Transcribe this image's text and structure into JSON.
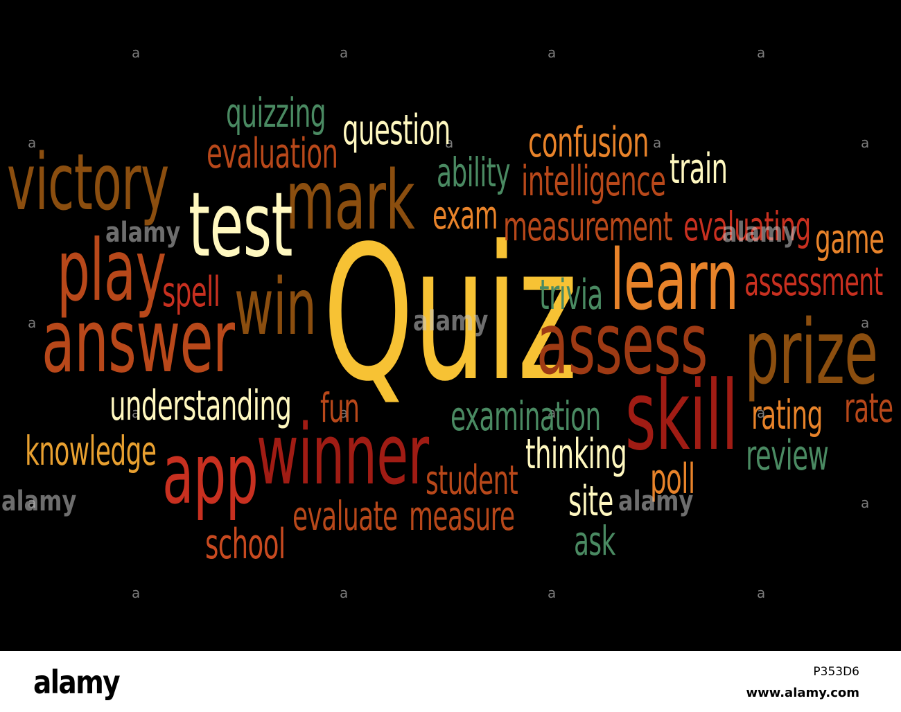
{
  "colors": {
    "background": "#000000",
    "yellow": "#f7c234",
    "cream": "#fff8c0",
    "brown": "#8b4e0f",
    "rust": "#b8481a",
    "orange": "#e8832a",
    "red": "#a01c14",
    "teal": "#4a8a62"
  },
  "words": [
    {
      "text": "Quiz",
      "color": "#f7c234"
    },
    {
      "text": "victory",
      "color": "#8b4e0f"
    },
    {
      "text": "mark",
      "color": "#8b4e0f"
    },
    {
      "text": "test",
      "color": "#fff8c0"
    },
    {
      "text": "play",
      "color": "#b8481a"
    },
    {
      "text": "win",
      "color": "#8b4e0f"
    },
    {
      "text": "answer",
      "color": "#b8481a"
    },
    {
      "text": "learn",
      "color": "#e8832a"
    },
    {
      "text": "assess",
      "color": "#9e3a14"
    },
    {
      "text": "prize",
      "color": "#8b4e0f"
    },
    {
      "text": "skill",
      "color": "#a01c14"
    },
    {
      "text": "winner",
      "color": "#a01c14"
    },
    {
      "text": "app",
      "color": "#c83020"
    },
    {
      "text": "quizzing",
      "color": "#4a8a62"
    },
    {
      "text": "question",
      "color": "#fff8c0"
    },
    {
      "text": "evaluation",
      "color": "#b8481a"
    },
    {
      "text": "confusion",
      "color": "#e8832a"
    },
    {
      "text": "ability",
      "color": "#4a8a62"
    },
    {
      "text": "intelligence",
      "color": "#b8481a"
    },
    {
      "text": "train",
      "color": "#fff8c0"
    },
    {
      "text": "exam",
      "color": "#e8832a"
    },
    {
      "text": "measurement",
      "color": "#b8481a"
    },
    {
      "text": "evaluating",
      "color": "#c83020"
    },
    {
      "text": "game",
      "color": "#e8832a"
    },
    {
      "text": "spell",
      "color": "#c83020"
    },
    {
      "text": "trivia",
      "color": "#4a8a62"
    },
    {
      "text": "assessment",
      "color": "#c83020"
    },
    {
      "text": "understanding",
      "color": "#fff8c0"
    },
    {
      "text": "fun",
      "color": "#b8481a"
    },
    {
      "text": "examination",
      "color": "#4a8a62"
    },
    {
      "text": "rating",
      "color": "#e8832a"
    },
    {
      "text": "rate",
      "color": "#b8481a"
    },
    {
      "text": "knowledge",
      "color": "#e8a030"
    },
    {
      "text": "thinking",
      "color": "#fff8c0"
    },
    {
      "text": "review",
      "color": "#4a8a62"
    },
    {
      "text": "student",
      "color": "#b8481a"
    },
    {
      "text": "poll",
      "color": "#e8832a"
    },
    {
      "text": "site",
      "color": "#fff8c0"
    },
    {
      "text": "evaluate",
      "color": "#b8481a"
    },
    {
      "text": "measure",
      "color": "#b8481a"
    },
    {
      "text": "school",
      "color": "#c84a20"
    },
    {
      "text": "ask",
      "color": "#4a8a62"
    }
  ],
  "watermark": {
    "mark": "a",
    "brand": "alamy"
  },
  "footer": {
    "logo": "alamy",
    "image_id": "P353D6",
    "url": "www.alamy.com"
  }
}
